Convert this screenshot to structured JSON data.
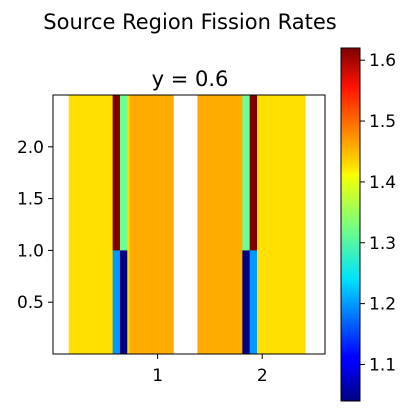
{
  "chart_data": {
    "type": "heatmap",
    "suptitle": "Source Region Fission Rates",
    "title": "y = 0.6",
    "xlabel": "",
    "ylabel": "",
    "xlim": [
      0,
      2.6
    ],
    "ylim": [
      0,
      2.5
    ],
    "xticks": [
      1,
      2
    ],
    "xtick_labels": [
      "1",
      "2"
    ],
    "yticks": [
      0.5,
      1.0,
      1.5,
      2.0
    ],
    "ytick_labels": [
      "0.5",
      "1.0",
      "1.5",
      "2.0"
    ],
    "colormap": "jet",
    "vmin": 1.04,
    "vmax": 1.62,
    "colorbar_ticks": [
      1.1,
      1.2,
      1.3,
      1.4,
      1.5,
      1.6
    ],
    "colorbar_tick_labels": [
      "1.1",
      "1.2",
      "1.3",
      "1.4",
      "1.5",
      "1.6"
    ],
    "cells": [
      {
        "x": [
          0.15,
          0.57
        ],
        "y": [
          0,
          2.5
        ],
        "value": 1.42
      },
      {
        "x": [
          0.57,
          0.64
        ],
        "y": [
          1.0,
          2.5
        ],
        "value": 1.62
      },
      {
        "x": [
          0.57,
          0.64
        ],
        "y": [
          0,
          1.0
        ],
        "value": 1.2
      },
      {
        "x": [
          0.64,
          0.71
        ],
        "y": [
          1.0,
          2.5
        ],
        "value": 1.32
      },
      {
        "x": [
          0.64,
          0.71
        ],
        "y": [
          0,
          1.0
        ],
        "value": 1.04
      },
      {
        "x": [
          0.71,
          0.73
        ],
        "y": [
          0,
          2.5
        ],
        "value": 1.42
      },
      {
        "x": [
          0.73,
          1.15
        ],
        "y": [
          0,
          2.5
        ],
        "value": 1.45
      },
      {
        "x": [
          1.38,
          1.81
        ],
        "y": [
          0,
          2.5
        ],
        "value": 1.45
      },
      {
        "x": [
          1.81,
          1.88
        ],
        "y": [
          1.0,
          2.5
        ],
        "value": 1.32
      },
      {
        "x": [
          1.81,
          1.88
        ],
        "y": [
          0,
          1.0
        ],
        "value": 1.04
      },
      {
        "x": [
          1.88,
          1.95
        ],
        "y": [
          1.0,
          2.5
        ],
        "value": 1.62
      },
      {
        "x": [
          1.88,
          1.95
        ],
        "y": [
          0,
          1.0
        ],
        "value": 1.2
      },
      {
        "x": [
          1.95,
          2.41
        ],
        "y": [
          0,
          2.5
        ],
        "value": 1.42
      }
    ]
  }
}
